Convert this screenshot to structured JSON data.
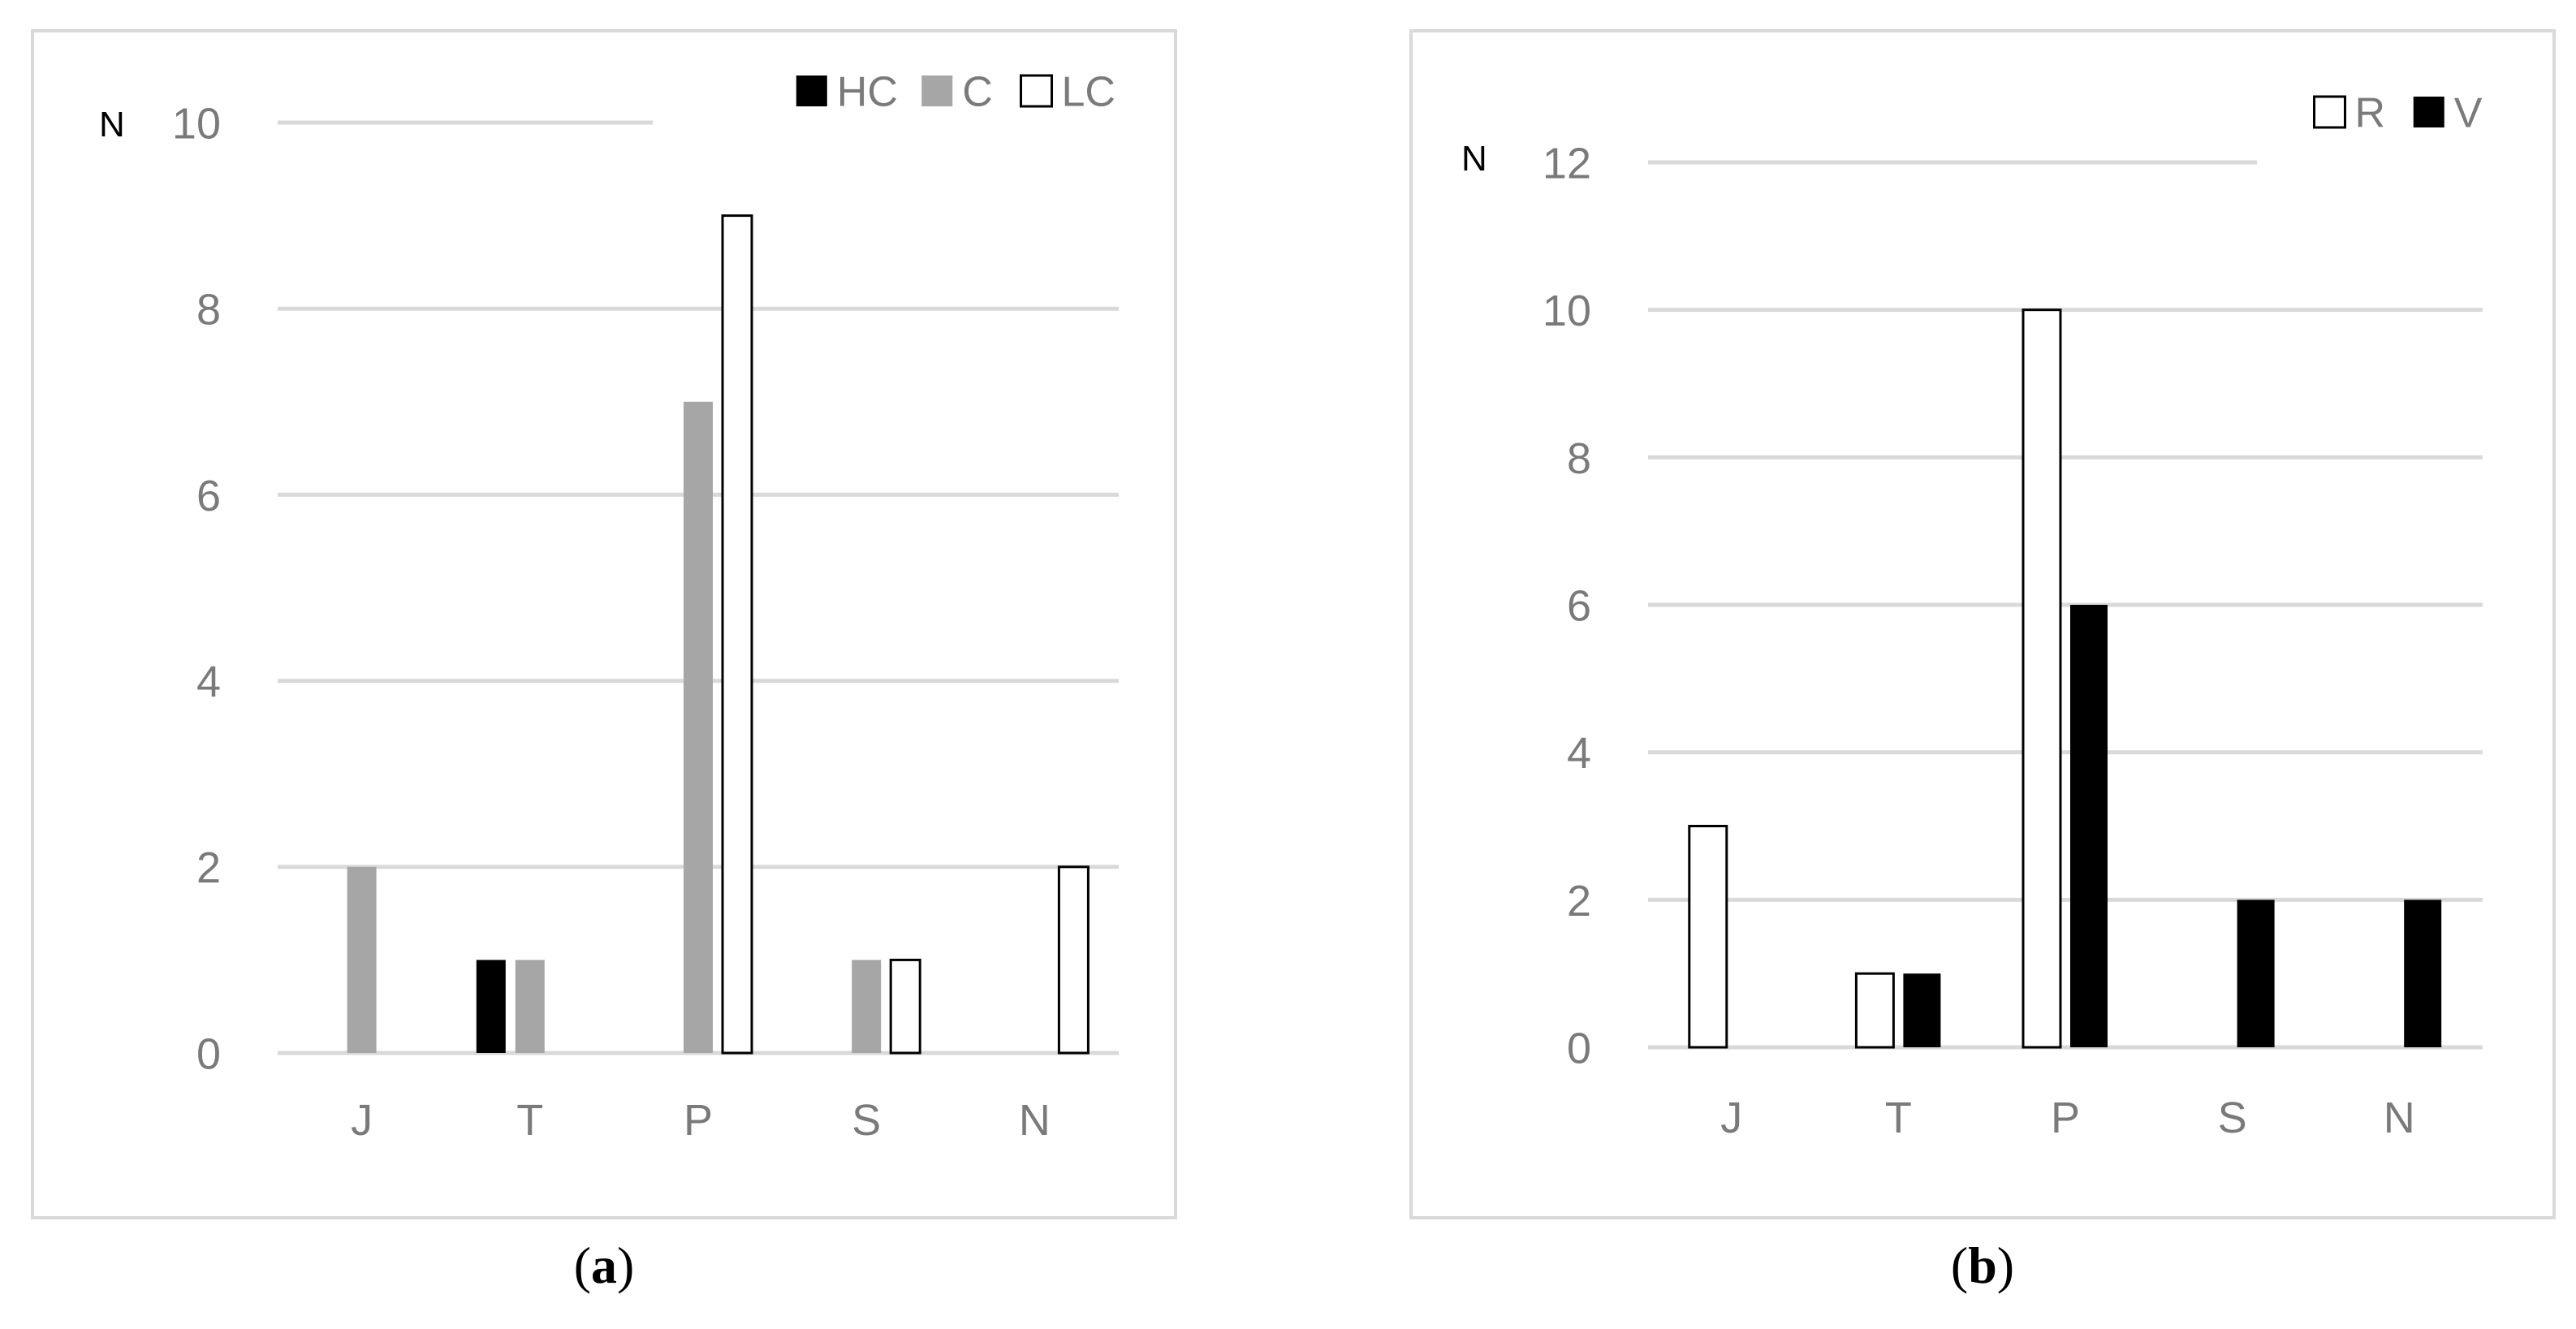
{
  "chart_data": [
    {
      "type": "bar",
      "panel_label": "a",
      "ylabel": "N",
      "xlabel": "",
      "categories": [
        "J",
        "T",
        "P",
        "S",
        "N"
      ],
      "ylim": [
        0,
        10
      ],
      "yticks": [
        "0",
        "2",
        "4",
        "6",
        "8",
        "10"
      ],
      "grid": true,
      "legend_position": "top-right",
      "series": [
        {
          "name": "HC",
          "color": "#000000",
          "values": [
            0,
            1,
            0,
            0,
            0
          ]
        },
        {
          "name": "C",
          "color": "#a6a6a6",
          "values": [
            2,
            1,
            7,
            1,
            0
          ]
        },
        {
          "name": "LC",
          "color": "#ffffff",
          "values": [
            0,
            0,
            9,
            1,
            2
          ]
        }
      ]
    },
    {
      "type": "bar",
      "panel_label": "b",
      "ylabel": "N",
      "xlabel": "",
      "categories": [
        "J",
        "T",
        "P",
        "S",
        "N"
      ],
      "ylim": [
        0,
        12
      ],
      "yticks": [
        "0",
        "2",
        "4",
        "6",
        "8",
        "10",
        "12"
      ],
      "grid": true,
      "legend_position": "top-right",
      "series": [
        {
          "name": "R",
          "color": "#ffffff",
          "values": [
            3,
            1,
            10,
            0,
            0
          ]
        },
        {
          "name": "V",
          "color": "#000000",
          "values": [
            0,
            1,
            6,
            2,
            2
          ]
        }
      ]
    }
  ],
  "captions": {
    "a": {
      "open": "(",
      "letter": "a",
      "close": ")"
    },
    "b": {
      "open": "(",
      "letter": "b",
      "close": ")"
    }
  }
}
